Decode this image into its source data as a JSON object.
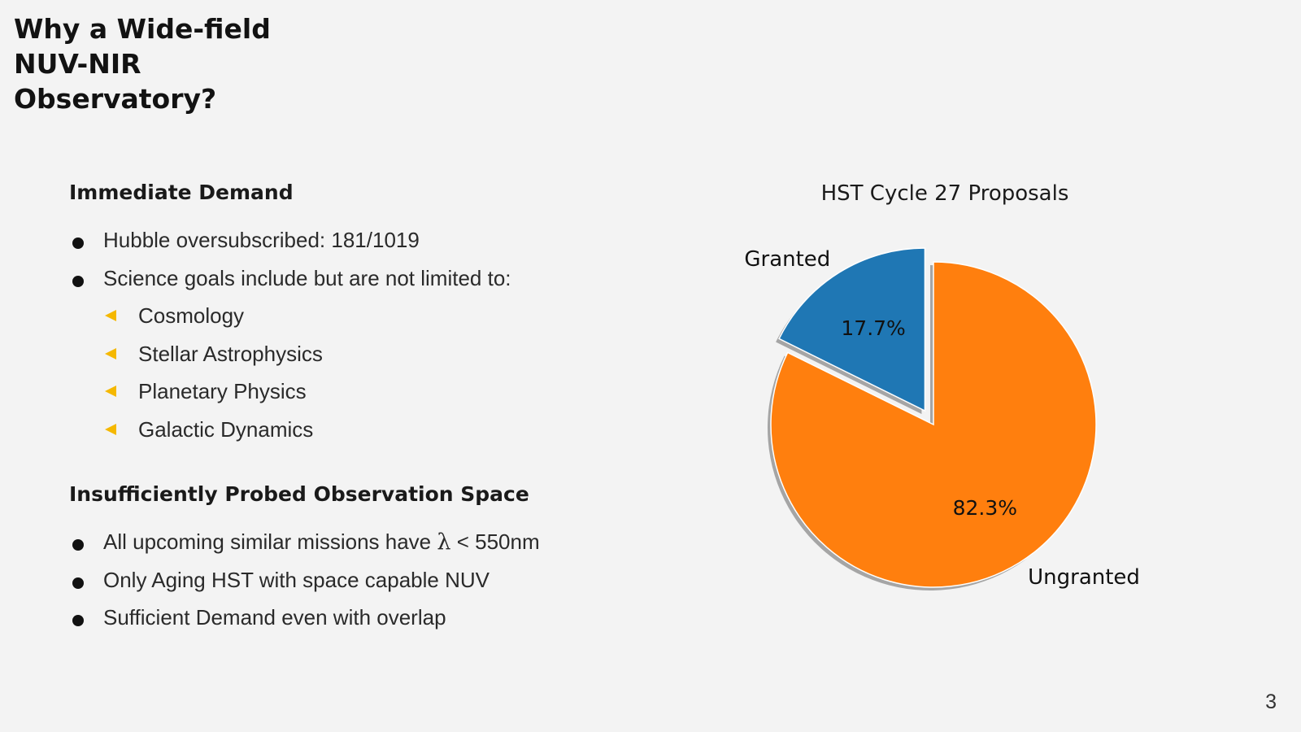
{
  "slide": {
    "title_lines": [
      "Why a Wide-field",
      "NUV-NIR",
      "Observatory?"
    ],
    "page_number": "3"
  },
  "sections": [
    {
      "heading": "Immediate Demand",
      "bullets": [
        "Hubble oversubscribed: 181/1019",
        "Science goals include but are not limited to:"
      ],
      "sub_bullets": [
        "Cosmology",
        "Stellar Astrophysics",
        "Planetary Physics",
        "Galactic Dynamics"
      ]
    },
    {
      "heading": "Insufficiently Probed Observation Space",
      "bullet1_prefix": "All upcoming similar missions have ",
      "bullet1_symbol": "λ",
      "bullet1_suffix": " < 550nm",
      "bullets": [
        "Only Aging HST with space capable NUV",
        "Sufficient Demand even with overlap"
      ]
    }
  ],
  "chart_data": {
    "type": "pie",
    "title": "HST Cycle 27 Proposals",
    "labels": [
      "Granted",
      "Ungranted"
    ],
    "values": [
      17.7,
      82.3
    ],
    "value_labels": [
      "17.7%",
      "82.3%"
    ],
    "colors": [
      "#1f77b4",
      "#ff7f0e"
    ],
    "exploded": [
      "Granted"
    ],
    "shadow": true,
    "start_angle_deg": 90
  },
  "colors": {
    "background": "#f3f3f3",
    "sub_bullet_marker": "#f5b800",
    "shadow": "#8b8b8b"
  }
}
